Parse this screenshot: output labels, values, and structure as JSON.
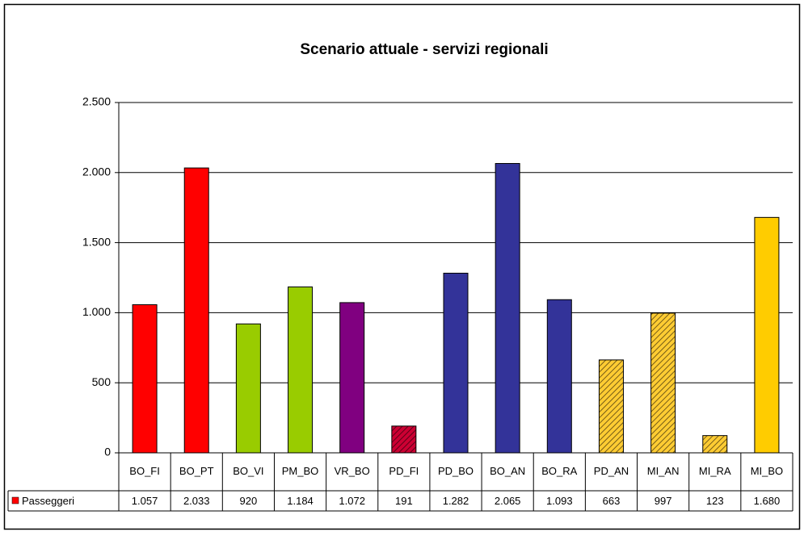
{
  "chart_data": {
    "type": "bar",
    "title": "Scenario attuale - servizi regionali",
    "categories": [
      "BO_FI",
      "BO_PT",
      "BO_VI",
      "PM_BO",
      "VR_BO",
      "PD_FI",
      "PD_BO",
      "BO_AN",
      "BO_RA",
      "PD_AN",
      "MI_AN",
      "MI_RA",
      "MI_BO"
    ],
    "series": [
      {
        "name": "Passeggeri",
        "color": "#ff0000",
        "values": [
          1057,
          2033,
          920,
          1184,
          1072,
          191,
          1282,
          2065,
          1093,
          663,
          997,
          123,
          1680
        ],
        "value_labels": [
          "1.057",
          "2.033",
          "920",
          "1.184",
          "1.072",
          "191",
          "1.282",
          "2.065",
          "1.093",
          "663",
          "997",
          "123",
          "1.680"
        ],
        "colors": [
          "#ff0000",
          "#ff0000",
          "#99cc00",
          "#99cc00",
          "#800080",
          "#cc0033",
          "#333399",
          "#333399",
          "#333399",
          "#ffcc33",
          "#ffcc33",
          "#ffcc33",
          "#ffcc00"
        ],
        "hatched": [
          false,
          false,
          false,
          false,
          false,
          true,
          false,
          false,
          false,
          true,
          true,
          true,
          false
        ]
      }
    ],
    "ylim": [
      0,
      2500
    ],
    "yticks": [
      0,
      500,
      {
        "value": 1000,
        "label": "1.000"
      },
      {
        "value": 1500,
        "label": "1.500"
      },
      {
        "value": 2000,
        "label": "2.000"
      },
      {
        "value": 2500,
        "label": "2.500"
      }
    ],
    "grid": true
  }
}
